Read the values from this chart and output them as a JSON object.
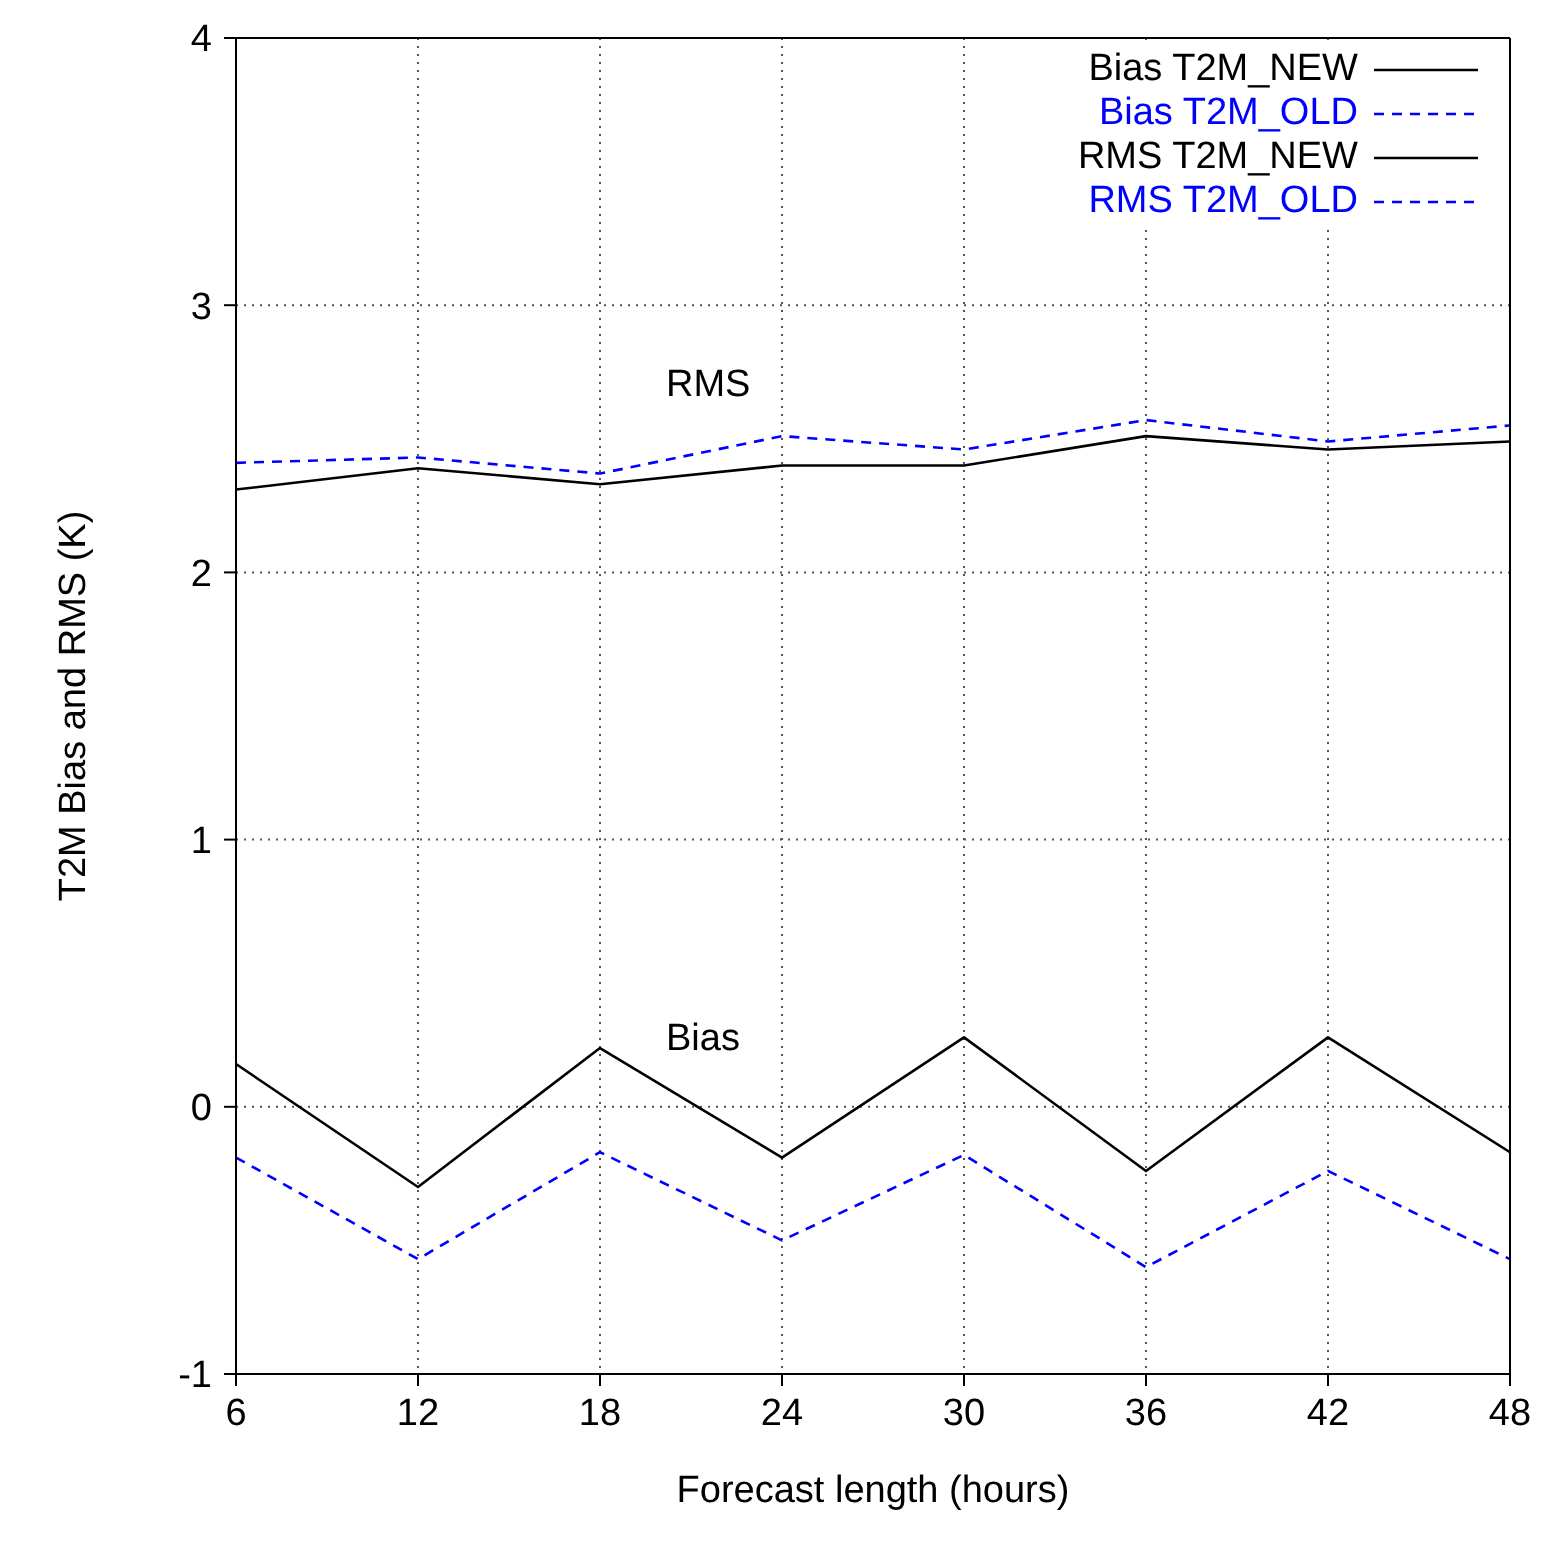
{
  "chart_data": {
    "type": "line",
    "xlabel": "Forecast length (hours)",
    "ylabel": "T2M Bias and RMS (K)",
    "x": [
      6,
      12,
      18,
      24,
      30,
      36,
      42,
      48
    ],
    "series": [
      {
        "name": "Bias T2M_NEW",
        "color": "#000000",
        "line_style": "solid",
        "values": [
          0.16,
          -0.3,
          0.22,
          -0.19,
          0.26,
          -0.24,
          0.26,
          -0.17
        ]
      },
      {
        "name": "Bias T2M_OLD",
        "color": "#0000ff",
        "line_style": "dashed",
        "values": [
          -0.19,
          -0.57,
          -0.17,
          -0.5,
          -0.18,
          -0.6,
          -0.24,
          -0.57
        ]
      },
      {
        "name": "RMS T2M_NEW",
        "color": "#000000",
        "line_style": "solid",
        "values": [
          2.31,
          2.39,
          2.33,
          2.4,
          2.4,
          2.51,
          2.46,
          2.49
        ]
      },
      {
        "name": "RMS T2M_OLD",
        "color": "#0000ff",
        "line_style": "dashed",
        "values": [
          2.41,
          2.43,
          2.37,
          2.51,
          2.46,
          2.57,
          2.49,
          2.55
        ]
      }
    ],
    "xlim": [
      6,
      48
    ],
    "xticks": [
      6,
      12,
      18,
      24,
      30,
      36,
      42,
      48
    ],
    "ylim": [
      -1,
      4
    ],
    "yticks": [
      -1,
      0,
      1,
      2,
      3,
      4
    ],
    "annotations": [
      "RMS",
      "Bias"
    ],
    "grid": true,
    "legend": "top right",
    "marker": "none"
  }
}
